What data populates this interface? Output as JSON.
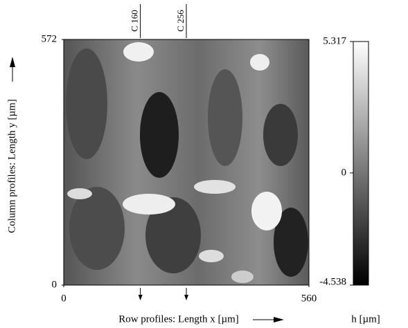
{
  "chart_data": {
    "type": "image",
    "xlabel": "Row profiles: Length x [µm]",
    "ylabel": "Column profiles: Length y [µm]",
    "xlim": [
      0,
      560
    ],
    "xticks": [
      0,
      560
    ],
    "ylim": [
      0,
      572
    ],
    "yticks": [
      0,
      572
    ],
    "colorbar": {
      "label": "h [µm]",
      "clim": [
        -4.538,
        5.317
      ],
      "cticks": [
        -4.538,
        0,
        5.317
      ]
    },
    "profiles": [
      {
        "label": "C 160",
        "x": 175
      },
      {
        "label": "C 256",
        "x": 280
      }
    ]
  }
}
